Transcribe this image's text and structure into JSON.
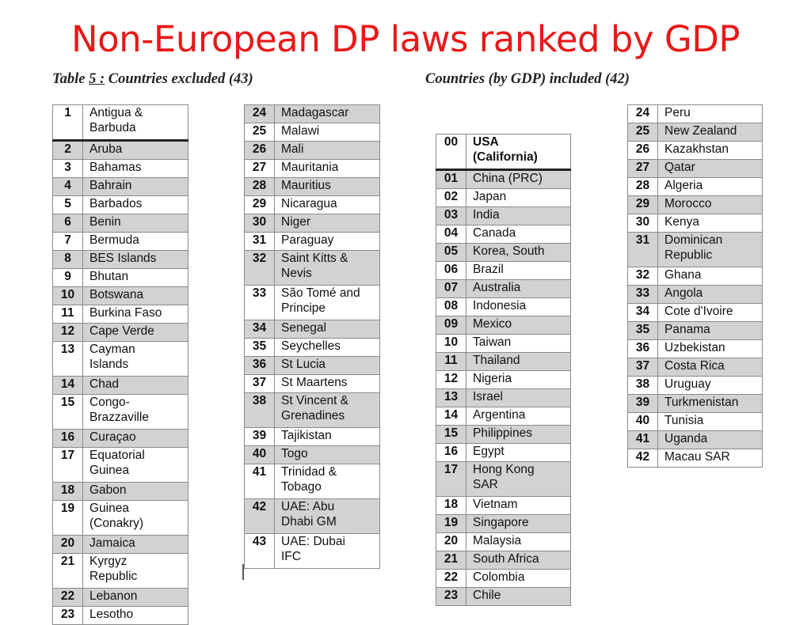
{
  "slide": {
    "title": "Non-European DP laws ranked by GDP",
    "excluded_heading_a": "Table ",
    "excluded_heading_b": "5 :",
    "excluded_heading_c": " Countries excluded (43)",
    "included_heading": "Countries (by GDP) included (42)"
  },
  "excluded_col1": [
    {
      "n": "1",
      "c": "Antigua &\nBarbuda",
      "g": false,
      "h": 2,
      "sep": true
    },
    {
      "n": "2",
      "c": "Aruba",
      "g": true,
      "h": 1
    },
    {
      "n": "3",
      "c": "Bahamas",
      "g": false,
      "h": 1
    },
    {
      "n": "4",
      "c": "Bahrain",
      "g": true,
      "h": 1
    },
    {
      "n": "5",
      "c": "Barbados",
      "g": false,
      "h": 1
    },
    {
      "n": "6",
      "c": "Benin",
      "g": true,
      "h": 1
    },
    {
      "n": "7",
      "c": "Bermuda",
      "g": false,
      "h": 1
    },
    {
      "n": "8",
      "c": "BES Islands",
      "g": true,
      "h": 1
    },
    {
      "n": "9",
      "c": "Bhutan",
      "g": false,
      "h": 1
    },
    {
      "n": "10",
      "c": "Botswana",
      "g": true,
      "h": 1
    },
    {
      "n": "11",
      "c": "Burkina Faso",
      "g": false,
      "h": 1
    },
    {
      "n": "12",
      "c": "Cape Verde",
      "g": true,
      "h": 1
    },
    {
      "n": "13",
      "c": "Cayman\nIslands",
      "g": false,
      "h": 2
    },
    {
      "n": "14",
      "c": "Chad",
      "g": true,
      "h": 1
    },
    {
      "n": "15",
      "c": "Congo-\nBrazzaville",
      "g": false,
      "h": 2
    },
    {
      "n": "16",
      "c": "Curaçao",
      "g": true,
      "h": 1
    },
    {
      "n": "17",
      "c": "Equatorial\nGuinea",
      "g": false,
      "h": 2
    },
    {
      "n": "18",
      "c": "Gabon",
      "g": true,
      "h": 1
    },
    {
      "n": "19",
      "c": "Guinea\n(Conakry)",
      "g": false,
      "h": 2
    },
    {
      "n": "20",
      "c": "Jamaica",
      "g": true,
      "h": 1
    },
    {
      "n": "21",
      "c": "Kyrgyz\nRepublic",
      "g": false,
      "h": 2
    },
    {
      "n": "22",
      "c": "Lebanon",
      "g": true,
      "h": 1
    },
    {
      "n": "23",
      "c": "Lesotho",
      "g": false,
      "h": 1
    }
  ],
  "excluded_col2": [
    {
      "n": "24",
      "c": "Madagascar",
      "g": true,
      "h": 1
    },
    {
      "n": "25",
      "c": "Malawi",
      "g": false,
      "h": 1
    },
    {
      "n": "26",
      "c": "Mali",
      "g": true,
      "h": 1
    },
    {
      "n": "27",
      "c": "Mauritania",
      "g": false,
      "h": 1
    },
    {
      "n": "28",
      "c": "Mauritius",
      "g": true,
      "h": 1
    },
    {
      "n": "29",
      "c": "Nicaragua",
      "g": false,
      "h": 1
    },
    {
      "n": "30",
      "c": "Niger",
      "g": true,
      "h": 1
    },
    {
      "n": "31",
      "c": "Paraguay",
      "g": false,
      "h": 1
    },
    {
      "n": "32",
      "c": "Saint Kitts &\nNevis",
      "g": true,
      "h": 2
    },
    {
      "n": "33",
      "c": "São Tomé and\nPrincipe",
      "g": false,
      "h": 2
    },
    {
      "n": "34",
      "c": "Senegal",
      "g": true,
      "h": 1
    },
    {
      "n": "35",
      "c": "Seychelles",
      "g": false,
      "h": 1
    },
    {
      "n": "36",
      "c": "St Lucia",
      "g": true,
      "h": 1
    },
    {
      "n": "37",
      "c": "St Maartens",
      "g": false,
      "h": 1
    },
    {
      "n": "38",
      "c": "St Vincent &\nGrenadines",
      "g": true,
      "h": 2
    },
    {
      "n": "39",
      "c": "Tajikistan",
      "g": false,
      "h": 1
    },
    {
      "n": "40",
      "c": "Togo",
      "g": true,
      "h": 1
    },
    {
      "n": "41",
      "c": "Trinidad &\nTobago",
      "g": false,
      "h": 2
    },
    {
      "n": "42",
      "c": "UAE: Abu\nDhabi GM",
      "g": true,
      "h": 2
    },
    {
      "n": "43",
      "c": "UAE: Dubai\nIFC",
      "g": false,
      "h": 2
    }
  ],
  "included_col1": [
    {
      "n": "00",
      "c": "USA\n(California)",
      "g": false,
      "h": 2,
      "bold": true,
      "sep": true
    },
    {
      "n": "01",
      "c": "China (PRC)",
      "g": true,
      "h": 1
    },
    {
      "n": "02",
      "c": "Japan",
      "g": false,
      "h": 1
    },
    {
      "n": "03",
      "c": "India",
      "g": true,
      "h": 1
    },
    {
      "n": "04",
      "c": "Canada",
      "g": false,
      "h": 1
    },
    {
      "n": "05",
      "c": "Korea, South",
      "g": true,
      "h": 1
    },
    {
      "n": "06",
      "c": "Brazil",
      "g": false,
      "h": 1
    },
    {
      "n": "07",
      "c": "Australia",
      "g": true,
      "h": 1
    },
    {
      "n": "08",
      "c": "Indonesia",
      "g": false,
      "h": 1
    },
    {
      "n": "09",
      "c": "Mexico",
      "g": true,
      "h": 1
    },
    {
      "n": "10",
      "c": "Taiwan",
      "g": false,
      "h": 1
    },
    {
      "n": "11",
      "c": "Thailand",
      "g": true,
      "h": 1
    },
    {
      "n": "12",
      "c": "Nigeria",
      "g": false,
      "h": 1
    },
    {
      "n": "13",
      "c": "Israel",
      "g": true,
      "h": 1
    },
    {
      "n": "14",
      "c": "Argentina",
      "g": false,
      "h": 1
    },
    {
      "n": "15",
      "c": "Philippines",
      "g": true,
      "h": 1
    },
    {
      "n": "16",
      "c": "Egypt",
      "g": false,
      "h": 1
    },
    {
      "n": "17",
      "c": "Hong Kong\nSAR",
      "g": true,
      "h": 2
    },
    {
      "n": "18",
      "c": "Vietnam",
      "g": false,
      "h": 1
    },
    {
      "n": "19",
      "c": "Singapore",
      "g": true,
      "h": 1
    },
    {
      "n": "20",
      "c": "Malaysia",
      "g": false,
      "h": 1
    },
    {
      "n": "21",
      "c": "South Africa",
      "g": true,
      "h": 1
    },
    {
      "n": "22",
      "c": "Colombia",
      "g": false,
      "h": 1
    },
    {
      "n": "23",
      "c": "Chile",
      "g": true,
      "h": 1
    }
  ],
  "included_col2": [
    {
      "n": "24",
      "c": "Peru",
      "g": false,
      "h": 1
    },
    {
      "n": "25",
      "c": "New Zealand",
      "g": true,
      "h": 1
    },
    {
      "n": "26",
      "c": "Kazakhstan",
      "g": false,
      "h": 1
    },
    {
      "n": "27",
      "c": "Qatar",
      "g": true,
      "h": 1
    },
    {
      "n": "28",
      "c": "Algeria",
      "g": false,
      "h": 1
    },
    {
      "n": "29",
      "c": "Morocco",
      "g": true,
      "h": 1
    },
    {
      "n": "30",
      "c": "Kenya",
      "g": false,
      "h": 1
    },
    {
      "n": "31",
      "c": "Dominican\nRepublic",
      "g": true,
      "h": 2
    },
    {
      "n": "32",
      "c": "Ghana",
      "g": false,
      "h": 1
    },
    {
      "n": "33",
      "c": "Angola",
      "g": true,
      "h": 1
    },
    {
      "n": "34",
      "c": "Cote d'Ivoire",
      "g": false,
      "h": 1
    },
    {
      "n": "35",
      "c": "Panama",
      "g": true,
      "h": 1
    },
    {
      "n": "36",
      "c": "Uzbekistan",
      "g": false,
      "h": 1
    },
    {
      "n": "37",
      "c": "Costa Rica",
      "g": true,
      "h": 1
    },
    {
      "n": "38",
      "c": "Uruguay",
      "g": false,
      "h": 1
    },
    {
      "n": "39",
      "c": "Turkmenistan",
      "g": true,
      "h": 1
    },
    {
      "n": "40",
      "c": "Tunisia",
      "g": false,
      "h": 1
    },
    {
      "n": "41",
      "c": "Uganda",
      "g": true,
      "h": 1
    },
    {
      "n": "42",
      "c": "Macau SAR",
      "g": false,
      "h": 1
    }
  ]
}
